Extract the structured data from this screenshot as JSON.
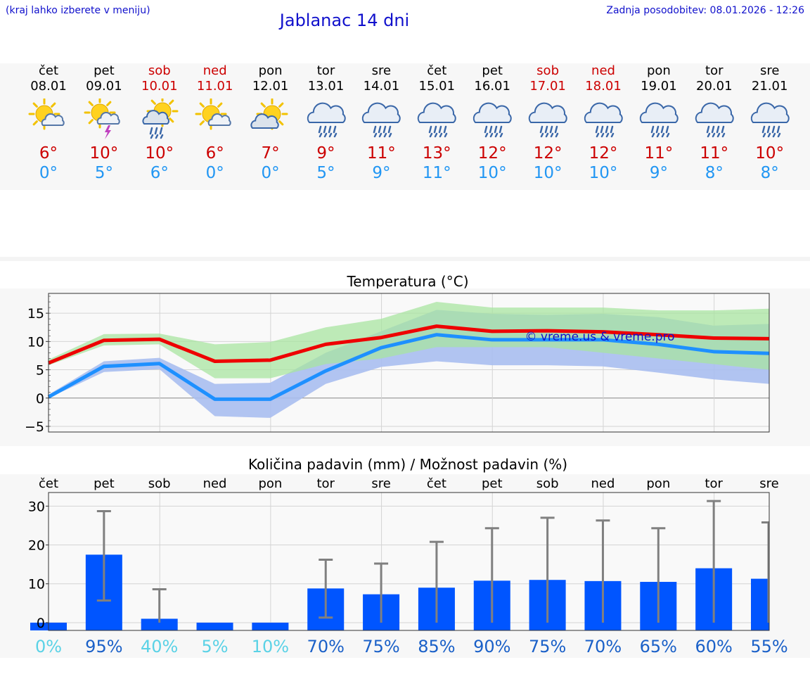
{
  "header": {
    "hint": "(kraj lahko izberete v meniju)",
    "title": "Jablanac 14 dni",
    "updated": "Zadnja posodobitev: 08.01.2026 - 12:26"
  },
  "days": [
    {
      "name": "čet",
      "date": "08.01",
      "weekend": false,
      "icon": "partly-cloudy-sun-icon",
      "tmax": "6°",
      "tmin": "0°"
    },
    {
      "name": "pet",
      "date": "09.01",
      "weekend": false,
      "icon": "sun-cloud-thunder-icon",
      "tmax": "10°",
      "tmin": "5°"
    },
    {
      "name": "sob",
      "date": "10.01",
      "weekend": true,
      "icon": "sun-cloud-rain-icon",
      "tmax": "10°",
      "tmin": "6°"
    },
    {
      "name": "ned",
      "date": "11.01",
      "weekend": true,
      "icon": "partly-cloudy-sun-icon",
      "tmax": "6°",
      "tmin": "0°"
    },
    {
      "name": "pon",
      "date": "12.01",
      "weekend": false,
      "icon": "sun-behind-cloud-icon",
      "tmax": "7°",
      "tmin": "0°"
    },
    {
      "name": "tor",
      "date": "13.01",
      "weekend": false,
      "icon": "rain-cloud-icon",
      "tmax": "9°",
      "tmin": "5°"
    },
    {
      "name": "sre",
      "date": "14.01",
      "weekend": false,
      "icon": "rain-cloud-icon",
      "tmax": "11°",
      "tmin": "9°"
    },
    {
      "name": "čet",
      "date": "15.01",
      "weekend": false,
      "icon": "rain-cloud-icon",
      "tmax": "13°",
      "tmin": "11°"
    },
    {
      "name": "pet",
      "date": "16.01",
      "weekend": false,
      "icon": "rain-cloud-icon",
      "tmax": "12°",
      "tmin": "10°"
    },
    {
      "name": "sob",
      "date": "17.01",
      "weekend": true,
      "icon": "rain-cloud-icon",
      "tmax": "12°",
      "tmin": "10°"
    },
    {
      "name": "ned",
      "date": "18.01",
      "weekend": true,
      "icon": "rain-cloud-icon",
      "tmax": "12°",
      "tmin": "10°"
    },
    {
      "name": "pon",
      "date": "19.01",
      "weekend": false,
      "icon": "rain-cloud-icon",
      "tmax": "11°",
      "tmin": "9°"
    },
    {
      "name": "tor",
      "date": "20.01",
      "weekend": false,
      "icon": "rain-cloud-icon",
      "tmax": "11°",
      "tmin": "8°"
    },
    {
      "name": "sre",
      "date": "21.01",
      "weekend": false,
      "icon": "rain-cloud-icon",
      "tmax": "10°",
      "tmin": "8°"
    }
  ],
  "colors": {
    "max_line": "#ee0000",
    "min_line": "#1e90ff",
    "max_band": "#a8e4a0",
    "min_band": "#a8bef0",
    "overlap_band": "#7cc8a8",
    "bar": "#0055ff",
    "whisker": "#808080",
    "weekend": "#cc0000",
    "link": "#1010cc"
  },
  "chart_data": [
    {
      "type": "line",
      "title": "Temperatura (°C)",
      "watermark": "© vreme.us & vreme.pro",
      "x": [
        0,
        1,
        2,
        3,
        4,
        5,
        6,
        7,
        8,
        9,
        10,
        11,
        12,
        13
      ],
      "ylim": [
        -6,
        18.5
      ],
      "yticks": [
        -5,
        0,
        5,
        10,
        15
      ],
      "ytick_labels": [
        "−5",
        "0",
        "5",
        "10",
        "15"
      ],
      "series": [
        {
          "name": "max",
          "values": [
            6.2,
            10.2,
            10.4,
            6.5,
            6.7,
            9.5,
            10.7,
            12.7,
            11.8,
            11.9,
            11.7,
            11.2,
            10.6,
            10.5
          ],
          "band_low": [
            5.8,
            9.3,
            9.5,
            3.5,
            3.5,
            6.0,
            7.0,
            9.0,
            9.0,
            9.0,
            8.0,
            7.0,
            6.0,
            5.0
          ],
          "band_high": [
            6.8,
            11.3,
            11.4,
            9.5,
            9.9,
            12.5,
            14.0,
            17.0,
            16.0,
            16.0,
            16.0,
            15.5,
            15.5,
            15.8
          ]
        },
        {
          "name": "min",
          "values": [
            0.2,
            5.6,
            6.1,
            -0.2,
            -0.2,
            4.8,
            8.9,
            11.2,
            10.3,
            10.3,
            10.3,
            9.5,
            8.2,
            7.9
          ],
          "band_low": [
            0.0,
            4.6,
            5.1,
            -3.2,
            -3.5,
            2.5,
            5.5,
            6.5,
            5.8,
            5.8,
            5.6,
            4.5,
            3.3,
            2.5
          ],
          "band_high": [
            0.6,
            6.5,
            7.1,
            2.5,
            2.7,
            8.0,
            11.8,
            15.6,
            14.9,
            14.7,
            14.9,
            14.3,
            12.8,
            13.1
          ]
        }
      ]
    },
    {
      "type": "bar",
      "title": "Količina padavin (mm) / Možnost padavin (%)",
      "categories": [
        "čet",
        "pet",
        "sob",
        "ned",
        "pon",
        "tor",
        "sre",
        "čet",
        "pet",
        "sob",
        "ned",
        "pon",
        "tor",
        "sre"
      ],
      "weekend_flags": [
        false,
        false,
        true,
        true,
        false,
        false,
        false,
        false,
        false,
        true,
        true,
        false,
        false,
        false
      ],
      "ylim": [
        -2,
        33.5
      ],
      "yticks": [
        0,
        10,
        20,
        30
      ],
      "values": [
        0,
        17.5,
        1,
        0,
        0,
        8.8,
        7.3,
        9,
        10.8,
        11,
        10.7,
        10.5,
        14,
        11.3
      ],
      "error_low": [
        0,
        5.7,
        0,
        0,
        0,
        1.3,
        0,
        0,
        0,
        0,
        0,
        0,
        0,
        0
      ],
      "error_high": [
        0,
        28.7,
        8.6,
        0,
        0,
        16.2,
        15.2,
        20.8,
        24.3,
        27,
        26.3,
        24.3,
        31.3,
        25.8
      ],
      "probabilities": [
        "0%",
        "95%",
        "40%",
        "5%",
        "10%",
        "70%",
        "75%",
        "85%",
        "90%",
        "75%",
        "70%",
        "65%",
        "60%",
        "55%"
      ],
      "probability_level": [
        0,
        95,
        40,
        5,
        10,
        70,
        75,
        85,
        90,
        75,
        70,
        65,
        60,
        55
      ]
    }
  ]
}
